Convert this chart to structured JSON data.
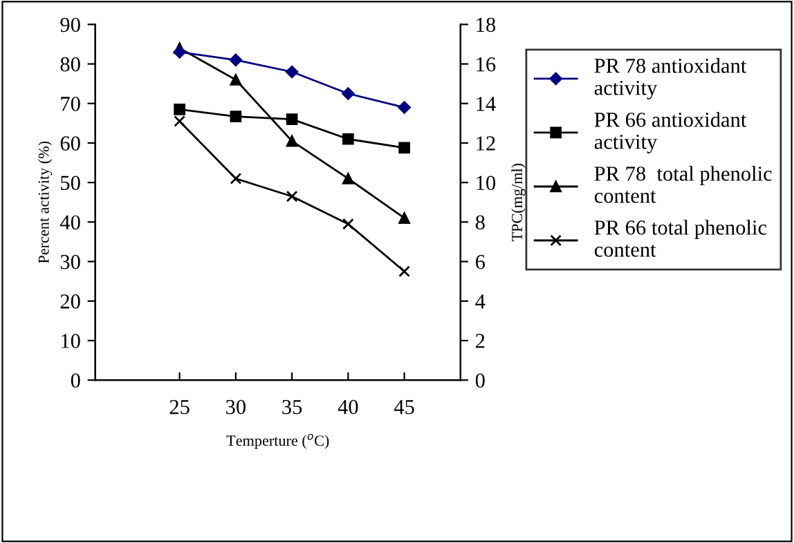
{
  "chart_data": {
    "type": "line",
    "categories": [
      "25",
      "30",
      "35",
      "40",
      "45"
    ],
    "xlabel": "Temperture ($^{o}$C)",
    "ylabel": "Percent activity (%)",
    "y2label": "TPC(mg/ml)",
    "ylim": [
      0,
      90
    ],
    "yticks": [
      0,
      10,
      20,
      30,
      40,
      50,
      60,
      70,
      80,
      90
    ],
    "y2lim": [
      0,
      18
    ],
    "y2ticks": [
      0,
      2,
      4,
      6,
      8,
      10,
      12,
      14,
      16,
      18
    ],
    "legend": "right",
    "grid": false,
    "series": [
      {
        "name": "PR 78 antioxidant activity",
        "color": "#000080",
        "marker": "diamond",
        "values": [
          83,
          81,
          78,
          72.5,
          69
        ]
      },
      {
        "name": "PR 66 antioxidant activity",
        "color": "#000000",
        "marker": "square",
        "values": [
          68.5,
          66.7,
          66,
          61,
          58.8
        ]
      },
      {
        "name": "PR 78  total phenolic content",
        "color": "#000000",
        "marker": "triangle",
        "axis": "y2",
        "values": [
          16.8,
          15.2,
          12.1,
          10.2,
          8.2
        ]
      },
      {
        "name": "PR 66 total phenolic content",
        "color": "#000000",
        "marker": "cross",
        "axis": "y2",
        "values": [
          13.1,
          10.2,
          9.3,
          7.9,
          5.5
        ]
      }
    ]
  }
}
